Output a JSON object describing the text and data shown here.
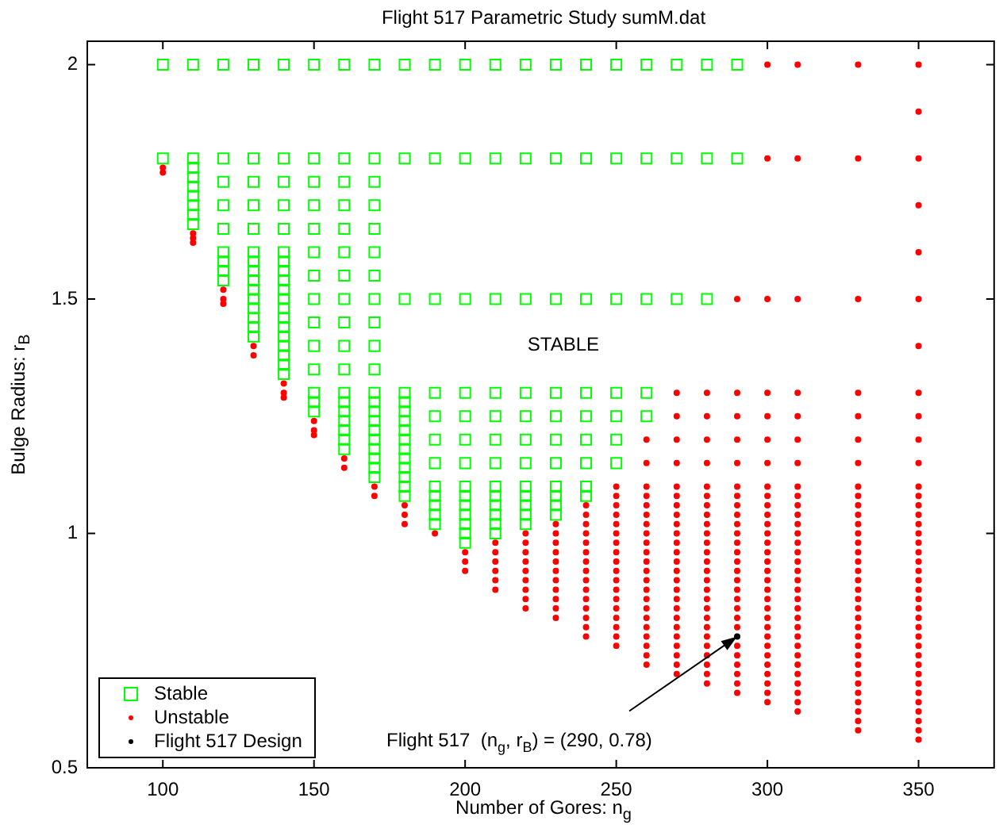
{
  "chart_data": {
    "type": "scatter",
    "title": "Flight 517 Parametric Study sumM.dat",
    "xlabel": "Number of Gores: n$_{g}$",
    "ylabel": "Bulge Radius: r$_{B}$",
    "xlim": [
      75,
      375
    ],
    "ylim": [
      0.5,
      2.05
    ],
    "xticks": [
      100,
      150,
      200,
      250,
      300,
      350
    ],
    "yticks": [
      0.5,
      1,
      1.5,
      2
    ],
    "legend": "bottom left",
    "annotations": [
      "STABLE",
      {
        "text": "Flight 517  (n$_{g}$, r$_{B}$) = (290, 0.78)",
        "x": 290,
        "y": 0.78
      }
    ],
    "series": [
      {
        "name": "Stable",
        "color": "#00ff00",
        "marker": "square",
        "x": [
          100,
          100,
          110,
          110,
          110,
          110,
          110,
          110,
          110,
          110,
          110,
          120,
          120,
          120,
          120,
          120,
          120,
          120,
          120,
          120,
          130,
          130,
          130,
          130,
          130,
          130,
          130,
          130,
          130,
          130,
          130,
          130,
          130,
          130,
          130,
          140,
          140,
          140,
          140,
          140,
          140,
          140,
          140,
          140,
          140,
          140,
          140,
          140,
          140,
          140,
          140,
          140,
          140,
          140,
          150,
          150,
          150,
          150,
          150,
          150,
          150,
          150,
          150,
          150,
          150,
          150,
          150,
          150,
          160,
          160,
          160,
          160,
          160,
          160,
          160,
          160,
          160,
          160,
          160,
          160,
          160,
          160,
          160,
          160,
          160,
          160,
          170,
          170,
          170,
          170,
          170,
          170,
          170,
          170,
          170,
          170,
          170,
          170,
          170,
          170,
          170,
          170,
          170,
          170,
          170,
          170,
          170,
          180,
          180,
          180,
          180,
          180,
          180,
          180,
          180,
          180,
          180,
          180,
          180,
          180,
          180,
          180,
          190,
          190,
          190,
          190,
          190,
          190,
          190,
          190,
          190,
          190,
          190,
          190,
          200,
          200,
          200,
          200,
          200,
          200,
          200,
          200,
          200,
          200,
          200,
          200,
          200,
          200,
          210,
          210,
          210,
          210,
          210,
          210,
          210,
          210,
          210,
          210,
          210,
          210,
          210,
          220,
          220,
          220,
          220,
          220,
          220,
          220,
          220,
          220,
          220,
          220,
          220,
          230,
          230,
          230,
          230,
          230,
          230,
          230,
          230,
          230,
          230,
          230,
          240,
          240,
          240,
          240,
          240,
          240,
          240,
          240,
          240,
          250,
          250,
          250,
          250,
          250,
          250,
          250,
          260,
          260,
          260,
          260,
          260,
          270,
          270,
          270,
          280,
          280,
          280,
          290,
          290
        ],
        "values": [
          2,
          1.8,
          2,
          1.8,
          1.78,
          1.76,
          1.74,
          1.72,
          1.7,
          1.68,
          1.66,
          2,
          1.8,
          1.75,
          1.7,
          1.65,
          1.6,
          1.58,
          1.56,
          1.54,
          2,
          1.8,
          1.75,
          1.7,
          1.65,
          1.6,
          1.58,
          1.56,
          1.54,
          1.52,
          1.5,
          1.48,
          1.46,
          1.44,
          1.42,
          2,
          1.8,
          1.75,
          1.7,
          1.65,
          1.6,
          1.58,
          1.56,
          1.54,
          1.52,
          1.5,
          1.48,
          1.46,
          1.44,
          1.42,
          1.4,
          1.38,
          1.36,
          1.34,
          2,
          1.8,
          1.75,
          1.7,
          1.65,
          1.6,
          1.55,
          1.5,
          1.45,
          1.4,
          1.35,
          1.3,
          1.28,
          1.26,
          2,
          1.8,
          1.75,
          1.7,
          1.65,
          1.6,
          1.55,
          1.5,
          1.45,
          1.4,
          1.35,
          1.3,
          1.28,
          1.26,
          1.24,
          1.22,
          1.2,
          1.18,
          2,
          1.8,
          1.75,
          1.7,
          1.65,
          1.6,
          1.55,
          1.5,
          1.45,
          1.4,
          1.35,
          1.3,
          1.28,
          1.26,
          1.24,
          1.22,
          1.2,
          1.18,
          1.16,
          1.14,
          1.12,
          2,
          1.8,
          1.5,
          1.3,
          1.28,
          1.26,
          1.24,
          1.22,
          1.2,
          1.18,
          1.16,
          1.14,
          1.12,
          1.1,
          1.08,
          2,
          1.8,
          1.5,
          1.3,
          1.25,
          1.2,
          1.15,
          1.1,
          1.08,
          1.06,
          1.04,
          1.02,
          2,
          1.8,
          1.5,
          1.3,
          1.25,
          1.2,
          1.15,
          1.1,
          1.08,
          1.06,
          1.04,
          1.02,
          1,
          0.98,
          2,
          1.8,
          1.5,
          1.3,
          1.25,
          1.2,
          1.15,
          1.1,
          1.08,
          1.06,
          1.04,
          1.02,
          1,
          2,
          1.8,
          1.5,
          1.3,
          1.25,
          1.2,
          1.15,
          1.1,
          1.08,
          1.06,
          1.04,
          1.02,
          2,
          1.8,
          1.5,
          1.3,
          1.25,
          1.2,
          1.15,
          1.1,
          1.08,
          1.06,
          1.04,
          2,
          1.8,
          1.5,
          1.3,
          1.25,
          1.2,
          1.15,
          1.1,
          1.08,
          2,
          1.8,
          1.5,
          1.3,
          1.25,
          1.2,
          1.15,
          2,
          1.8,
          1.5,
          1.3,
          1.25,
          2,
          1.8,
          1.5,
          2,
          1.8,
          1.5,
          2,
          1.8
        ]
      },
      {
        "name": "Unstable",
        "color": "#ff0000",
        "marker": "circle",
        "x": [
          100,
          100,
          110,
          110,
          110,
          120,
          120,
          120,
          130,
          130,
          140,
          140,
          140,
          150,
          150,
          150,
          160,
          160,
          170,
          170,
          180,
          180,
          180,
          190,
          200,
          200,
          200,
          210,
          210,
          210,
          210,
          210,
          210,
          220,
          220,
          220,
          220,
          220,
          220,
          220,
          220,
          220,
          230,
          230,
          230,
          230,
          230,
          230,
          230,
          230,
          230,
          230,
          230,
          240,
          240,
          240,
          240,
          240,
          240,
          240,
          240,
          240,
          240,
          240,
          240,
          240,
          240,
          240,
          250,
          250,
          250,
          250,
          250,
          250,
          250,
          250,
          250,
          250,
          250,
          250,
          250,
          250,
          250,
          250,
          250,
          250,
          260,
          260,
          260,
          260,
          260,
          260,
          260,
          260,
          260,
          260,
          260,
          260,
          260,
          260,
          260,
          260,
          260,
          260,
          260,
          260,
          260,
          260,
          270,
          270,
          270,
          270,
          270,
          270,
          270,
          270,
          270,
          270,
          270,
          270,
          270,
          270,
          270,
          270,
          270,
          270,
          270,
          270,
          270,
          270,
          270,
          270,
          270,
          280,
          280,
          280,
          280,
          280,
          280,
          280,
          280,
          280,
          280,
          280,
          280,
          280,
          280,
          280,
          280,
          280,
          280,
          280,
          280,
          280,
          280,
          280,
          280,
          280,
          280,
          290,
          290,
          290,
          290,
          290,
          290,
          290,
          290,
          290,
          290,
          290,
          290,
          290,
          290,
          290,
          290,
          290,
          290,
          290,
          290,
          290,
          290,
          290,
          290,
          290,
          290,
          290,
          300,
          300,
          300,
          300,
          300,
          300,
          300,
          300,
          300,
          300,
          300,
          300,
          300,
          300,
          300,
          300,
          300,
          300,
          300,
          300,
          300,
          300,
          300,
          300,
          300,
          300,
          300,
          300,
          300,
          300,
          300,
          310,
          310,
          310,
          310,
          310,
          310,
          310,
          310,
          310,
          310,
          310,
          310,
          310,
          310,
          310,
          310,
          310,
          310,
          310,
          310,
          310,
          310,
          310,
          310,
          310,
          310,
          310,
          310,
          310,
          310,
          310,
          310,
          330,
          330,
          330,
          330,
          330,
          330,
          330,
          330,
          330,
          330,
          330,
          330,
          330,
          330,
          330,
          330,
          330,
          330,
          330,
          330,
          330,
          330,
          330,
          330,
          330,
          330,
          330,
          330,
          330,
          330,
          330,
          330,
          330,
          330,
          350,
          350,
          350,
          350,
          350,
          350,
          350,
          350,
          350,
          350,
          350,
          350,
          350,
          350,
          350,
          350,
          350,
          350,
          350,
          350,
          350,
          350,
          350,
          350,
          350,
          350,
          350,
          350,
          350,
          350,
          350,
          350,
          350,
          350,
          350,
          350,
          350,
          350,
          350
        ],
        "values": [
          1.78,
          1.77,
          1.64,
          1.63,
          1.62,
          1.52,
          1.5,
          1.49,
          1.4,
          1.38,
          1.32,
          1.3,
          1.29,
          1.24,
          1.22,
          1.21,
          1.16,
          1.14,
          1.1,
          1.08,
          1.06,
          1.04,
          1.02,
          1,
          0.96,
          0.94,
          0.92,
          0.98,
          0.96,
          0.94,
          0.92,
          0.9,
          0.88,
          1,
          0.98,
          0.96,
          0.94,
          0.92,
          0.9,
          0.88,
          0.86,
          0.84,
          1.02,
          1,
          0.98,
          0.96,
          0.94,
          0.92,
          0.9,
          0.88,
          0.86,
          0.84,
          0.82,
          1.06,
          1.04,
          1.02,
          1,
          0.98,
          0.96,
          0.94,
          0.92,
          0.9,
          0.88,
          0.86,
          0.84,
          0.82,
          0.8,
          0.78,
          1.1,
          1.08,
          1.06,
          1.04,
          1.02,
          1,
          0.98,
          0.96,
          0.94,
          0.92,
          0.9,
          0.88,
          0.86,
          0.84,
          0.82,
          0.8,
          0.78,
          0.76,
          1.2,
          1.15,
          1.1,
          1.08,
          1.06,
          1.04,
          1.02,
          1,
          0.98,
          0.96,
          0.94,
          0.92,
          0.9,
          0.88,
          0.86,
          0.84,
          0.82,
          0.8,
          0.78,
          0.76,
          0.74,
          0.72,
          1.3,
          1.25,
          1.2,
          1.15,
          1.1,
          1.08,
          1.06,
          1.04,
          1.02,
          1,
          0.98,
          0.96,
          0.94,
          0.92,
          0.9,
          0.88,
          0.86,
          0.84,
          0.82,
          0.8,
          0.78,
          0.76,
          0.74,
          0.72,
          0.7,
          1.3,
          1.25,
          1.2,
          1.15,
          1.1,
          1.08,
          1.06,
          1.04,
          1.02,
          1,
          0.98,
          0.96,
          0.94,
          0.92,
          0.9,
          0.88,
          0.86,
          0.84,
          0.82,
          0.8,
          0.78,
          0.76,
          0.74,
          0.72,
          0.7,
          0.68,
          1.5,
          1.3,
          1.25,
          1.2,
          1.15,
          1.1,
          1.08,
          1.06,
          1.04,
          1.02,
          1,
          0.98,
          0.96,
          0.94,
          0.92,
          0.9,
          0.88,
          0.86,
          0.84,
          0.82,
          0.8,
          0.76,
          0.74,
          0.72,
          0.7,
          0.68,
          0.66,
          2,
          1.8,
          1.5,
          1.3,
          1.25,
          1.2,
          1.15,
          1.1,
          1.08,
          1.06,
          1.04,
          1.02,
          1,
          0.98,
          0.96,
          0.94,
          0.92,
          0.9,
          0.88,
          0.86,
          0.84,
          0.82,
          0.8,
          0.78,
          0.76,
          0.74,
          0.72,
          0.7,
          0.68,
          0.66,
          0.64,
          2,
          1.8,
          1.5,
          1.3,
          1.25,
          1.2,
          1.15,
          1.1,
          1.08,
          1.06,
          1.04,
          1.02,
          1,
          0.98,
          0.96,
          0.94,
          0.92,
          0.9,
          0.88,
          0.86,
          0.84,
          0.82,
          0.8,
          0.78,
          0.76,
          0.74,
          0.72,
          0.7,
          0.68,
          0.66,
          0.64,
          0.62,
          2,
          1.8,
          1.5,
          1.3,
          1.25,
          1.2,
          1.15,
          1.1,
          1.08,
          1.06,
          1.04,
          1.02,
          1,
          0.98,
          0.96,
          0.94,
          0.92,
          0.9,
          0.88,
          0.86,
          0.84,
          0.82,
          0.8,
          0.78,
          0.76,
          0.74,
          0.72,
          0.7,
          0.68,
          0.66,
          0.64,
          0.62,
          0.6,
          0.58,
          2,
          1.9,
          1.8,
          1.7,
          1.6,
          1.5,
          1.4,
          1.3,
          1.25,
          1.2,
          1.15,
          1.1,
          1.08,
          1.06,
          1.04,
          1.02,
          1,
          0.98,
          0.96,
          0.94,
          0.92,
          0.9,
          0.88,
          0.86,
          0.84,
          0.82,
          0.8,
          0.78,
          0.76,
          0.74,
          0.72,
          0.7,
          0.68,
          0.66,
          0.64,
          0.62,
          0.6,
          0.58,
          0.56
        ]
      },
      {
        "name": "Flight 517 Design",
        "color": "#000000",
        "marker": "circle",
        "x": [
          290
        ],
        "values": [
          0.78
        ]
      }
    ]
  }
}
